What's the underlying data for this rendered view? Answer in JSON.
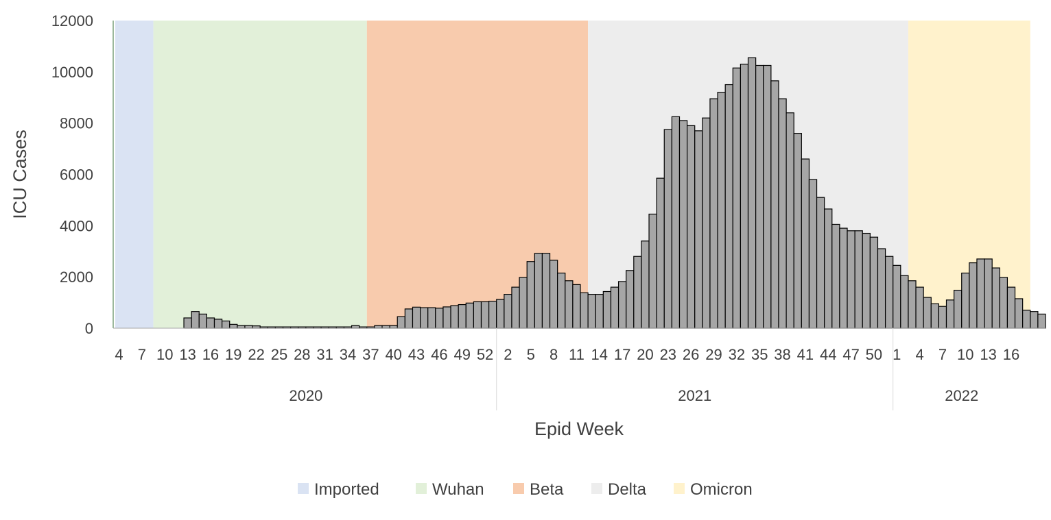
{
  "chart_data": {
    "type": "bar",
    "title": "",
    "xlabel": "Epid Week",
    "ylabel": "ICU Cases",
    "ylim": [
      0,
      12000
    ],
    "yticks": [
      0,
      2000,
      4000,
      6000,
      8000,
      10000,
      12000
    ],
    "grid": false,
    "legend_position": "bottom",
    "bar_color": "#a6a6a6",
    "bar_edge_color": "#000000",
    "x_tick_labels": [
      {
        "index": 0,
        "label": "4"
      },
      {
        "index": 3,
        "label": "7"
      },
      {
        "index": 6,
        "label": "10"
      },
      {
        "index": 9,
        "label": "13"
      },
      {
        "index": 12,
        "label": "16"
      },
      {
        "index": 15,
        "label": "19"
      },
      {
        "index": 18,
        "label": "22"
      },
      {
        "index": 21,
        "label": "25"
      },
      {
        "index": 24,
        "label": "28"
      },
      {
        "index": 27,
        "label": "31"
      },
      {
        "index": 30,
        "label": "34"
      },
      {
        "index": 33,
        "label": "37"
      },
      {
        "index": 36,
        "label": "40"
      },
      {
        "index": 39,
        "label": "43"
      },
      {
        "index": 42,
        "label": "46"
      },
      {
        "index": 45,
        "label": "49"
      },
      {
        "index": 48,
        "label": "52"
      },
      {
        "index": 51,
        "label": "2"
      },
      {
        "index": 54,
        "label": "5"
      },
      {
        "index": 57,
        "label": "8"
      },
      {
        "index": 60,
        "label": "11"
      },
      {
        "index": 63,
        "label": "14"
      },
      {
        "index": 66,
        "label": "17"
      },
      {
        "index": 69,
        "label": "20"
      },
      {
        "index": 72,
        "label": "23"
      },
      {
        "index": 75,
        "label": "26"
      },
      {
        "index": 78,
        "label": "29"
      },
      {
        "index": 81,
        "label": "32"
      },
      {
        "index": 84,
        "label": "35"
      },
      {
        "index": 87,
        "label": "38"
      },
      {
        "index": 90,
        "label": "41"
      },
      {
        "index": 93,
        "label": "44"
      },
      {
        "index": 96,
        "label": "47"
      },
      {
        "index": 99,
        "label": "50"
      },
      {
        "index": 102,
        "label": "1"
      },
      {
        "index": 105,
        "label": "4"
      },
      {
        "index": 108,
        "label": "7"
      },
      {
        "index": 111,
        "label": "10"
      },
      {
        "index": 114,
        "label": "13"
      },
      {
        "index": 117,
        "label": "16"
      }
    ],
    "years": [
      {
        "label": "2020",
        "first_index": 0,
        "last_index": 49
      },
      {
        "label": "2021",
        "first_index": 50,
        "last_index": 101
      },
      {
        "label": "2022",
        "first_index": 102,
        "last_index": 119
      }
    ],
    "variant_periods": [
      {
        "name": "Imported",
        "color": "#dae3f3",
        "first_index": 0,
        "last_index": 4
      },
      {
        "name": "Wuhan",
        "color": "#e2f0d9",
        "first_index": 5,
        "last_index": 32
      },
      {
        "name": "Beta",
        "color": "#f8cbad",
        "first_index": 33,
        "last_index": 61
      },
      {
        "name": "Delta",
        "color": "#ededed",
        "first_index": 62,
        "last_index": 103
      },
      {
        "name": "Omicron",
        "color": "#fff2cc",
        "first_index": 104,
        "last_index": 119
      }
    ],
    "values": [
      0,
      0,
      0,
      0,
      0,
      0,
      0,
      0,
      0,
      400,
      650,
      550,
      400,
      350,
      280,
      150,
      100,
      100,
      90,
      50,
      50,
      50,
      50,
      50,
      50,
      50,
      50,
      50,
      50,
      50,
      50,
      100,
      50,
      50,
      100,
      100,
      100,
      450,
      750,
      820,
      800,
      800,
      780,
      830,
      880,
      920,
      980,
      1030,
      1030,
      1050,
      1120,
      1320,
      1600,
      1980,
      2600,
      2920,
      2920,
      2650,
      2150,
      1850,
      1700,
      1380,
      1320,
      1320,
      1430,
      1600,
      1820,
      2250,
      2800,
      3400,
      4450,
      5850,
      7750,
      8250,
      8100,
      7900,
      7700,
      8200,
      8950,
      9200,
      9500,
      10150,
      10300,
      10550,
      10250,
      10250,
      9650,
      8950,
      8400,
      7600,
      6600,
      5800,
      5100,
      4650,
      4050,
      3900,
      3800,
      3800,
      3700,
      3550,
      3100,
      2800,
      2450,
      2050,
      1850,
      1600,
      1200,
      950,
      850,
      1100,
      1480,
      2150,
      2550,
      2700,
      2700,
      2350,
      1980,
      1600,
      1150,
      700,
      650,
      550
    ]
  }
}
